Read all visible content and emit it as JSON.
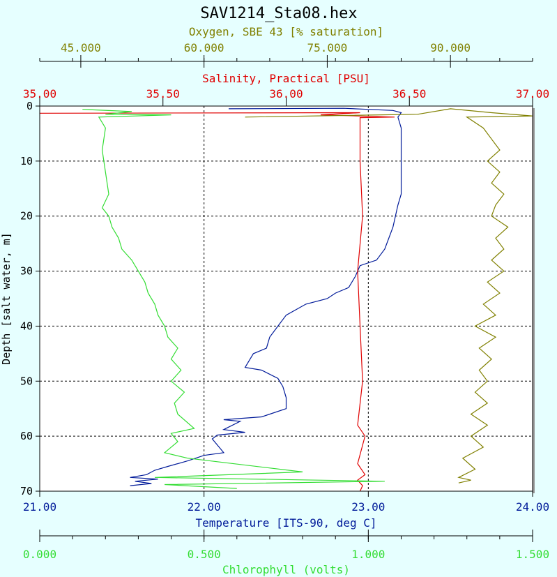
{
  "colors": {
    "background": "#e6ffff",
    "plot_background": "#ffffff",
    "axis": "#000000",
    "oxygen": "#808000",
    "salinity": "#e00000",
    "temperature": "#001a99",
    "chlorophyll": "#33dd33",
    "grid": "#000000",
    "title": "#000000"
  },
  "chart_data": {
    "type": "line",
    "title": "SAV1214_Sta08.hex",
    "grid": true,
    "y_axis": {
      "label": "Depth [salt water, m]",
      "range": [
        0,
        70
      ],
      "inverted": true,
      "ticks": [
        "0",
        "10",
        "20",
        "30",
        "40",
        "50",
        "60",
        "70"
      ]
    },
    "x_axes": [
      {
        "key": "oxygen",
        "position": "top",
        "label": "Oxygen, SBE 43 [% saturation]",
        "range": [
          40,
          100
        ],
        "major_ticks": [
          40,
          50,
          60,
          70,
          80,
          90,
          100
        ],
        "labeled_ticks": [
          {
            "value": 45,
            "text": "45.000"
          },
          {
            "value": 60,
            "text": "60.000"
          },
          {
            "value": 75,
            "text": "75.000"
          },
          {
            "value": 90,
            "text": "90.000"
          }
        ]
      },
      {
        "key": "salinity",
        "position": "top",
        "label": "Salinity, Practical [PSU]",
        "range": [
          35.0,
          37.0
        ],
        "labeled_ticks": [
          {
            "value": 35.0,
            "text": "35.00"
          },
          {
            "value": 35.5,
            "text": "35.50"
          },
          {
            "value": 36.0,
            "text": "36.00"
          },
          {
            "value": 36.5,
            "text": "36.50"
          },
          {
            "value": 37.0,
            "text": "37.00"
          }
        ]
      },
      {
        "key": "temperature",
        "position": "bottom",
        "label": "Temperature [ITS-90, deg C]",
        "range": [
          21.0,
          24.0
        ],
        "labeled_ticks": [
          {
            "value": 21.0,
            "text": "21.00"
          },
          {
            "value": 22.0,
            "text": "22.00"
          },
          {
            "value": 23.0,
            "text": "23.00"
          },
          {
            "value": 24.0,
            "text": "24.00"
          }
        ]
      },
      {
        "key": "chlorophyll",
        "position": "bottom",
        "label": "Chlorophyll (volts)",
        "range": [
          0.0,
          1.5
        ],
        "labeled_ticks": [
          {
            "value": 0.0,
            "text": "0.000"
          },
          {
            "value": 0.5,
            "text": "0.500"
          },
          {
            "value": 1.0,
            "text": "1.000"
          },
          {
            "value": 1.5,
            "text": "1.500"
          }
        ]
      }
    ],
    "series": [
      {
        "key": "temperature",
        "axis": "temperature",
        "points": [
          [
            22.15,
            0.5
          ],
          [
            22.85,
            0.4
          ],
          [
            23.15,
            0.8
          ],
          [
            23.2,
            1.2
          ],
          [
            23.18,
            2.0
          ],
          [
            23.2,
            4
          ],
          [
            23.2,
            10
          ],
          [
            23.2,
            16
          ],
          [
            23.18,
            18
          ],
          [
            23.15,
            22
          ],
          [
            23.1,
            26
          ],
          [
            23.05,
            28
          ],
          [
            22.95,
            29
          ],
          [
            22.92,
            31
          ],
          [
            22.88,
            33
          ],
          [
            22.8,
            34
          ],
          [
            22.75,
            35
          ],
          [
            22.62,
            36
          ],
          [
            22.5,
            38
          ],
          [
            22.45,
            40
          ],
          [
            22.4,
            42
          ],
          [
            22.38,
            44
          ],
          [
            22.3,
            45
          ],
          [
            22.25,
            47.5
          ],
          [
            22.35,
            48
          ],
          [
            22.45,
            49.5
          ],
          [
            22.48,
            51
          ],
          [
            22.5,
            53
          ],
          [
            22.5,
            55
          ],
          [
            22.35,
            56.5
          ],
          [
            22.12,
            57
          ],
          [
            22.22,
            57.3
          ],
          [
            22.12,
            58.8
          ],
          [
            22.25,
            59.3
          ],
          [
            22.08,
            59.8
          ],
          [
            22.05,
            60.5
          ],
          [
            22.12,
            63
          ],
          [
            22.0,
            63.5
          ],
          [
            21.9,
            64.5
          ],
          [
            21.78,
            65.5
          ],
          [
            21.7,
            66.2
          ],
          [
            21.65,
            67
          ],
          [
            21.55,
            67.5
          ],
          [
            21.72,
            67.8
          ],
          [
            21.58,
            68.2
          ],
          [
            21.68,
            68.6
          ],
          [
            21.55,
            69.0
          ]
        ]
      },
      {
        "key": "salinity",
        "axis": "salinity",
        "points": [
          [
            35.0,
            1.3
          ],
          [
            36.3,
            1.2
          ],
          [
            36.14,
            1.6
          ],
          [
            36.44,
            2.0
          ],
          [
            36.3,
            2.1
          ],
          [
            36.3,
            10
          ],
          [
            36.31,
            20
          ],
          [
            36.29,
            30
          ],
          [
            36.3,
            40
          ],
          [
            36.31,
            50
          ],
          [
            36.29,
            58
          ],
          [
            36.32,
            60
          ],
          [
            36.29,
            65
          ],
          [
            36.32,
            67
          ],
          [
            36.29,
            68
          ],
          [
            36.31,
            69
          ],
          [
            36.3,
            70
          ]
        ]
      },
      {
        "key": "oxygen",
        "axis": "oxygen",
        "points": [
          [
            65,
            2.0
          ],
          [
            86,
            1.5
          ],
          [
            90,
            0.5
          ],
          [
            95,
            1.2
          ],
          [
            100,
            1.8
          ],
          [
            92,
            2.0
          ],
          [
            94,
            4
          ],
          [
            95,
            6
          ],
          [
            96,
            8
          ],
          [
            94.5,
            10
          ],
          [
            96,
            12
          ],
          [
            95,
            14
          ],
          [
            96.5,
            16
          ],
          [
            95.5,
            18
          ],
          [
            95,
            20
          ],
          [
            97,
            22
          ],
          [
            95.5,
            24
          ],
          [
            96.5,
            26
          ],
          [
            95,
            28
          ],
          [
            96.5,
            30
          ],
          [
            94.5,
            32
          ],
          [
            96,
            34
          ],
          [
            94,
            36
          ],
          [
            95.5,
            38
          ],
          [
            93,
            40
          ],
          [
            95.5,
            42
          ],
          [
            93.5,
            44
          ],
          [
            95,
            46
          ],
          [
            93.5,
            48
          ],
          [
            94.5,
            50
          ],
          [
            93,
            52
          ],
          [
            94.5,
            54
          ],
          [
            92.5,
            56
          ],
          [
            94.5,
            58
          ],
          [
            92.5,
            60
          ],
          [
            94,
            62
          ],
          [
            91.5,
            64
          ],
          [
            93,
            66
          ],
          [
            91,
            67.5
          ],
          [
            92.5,
            68
          ],
          [
            91,
            68.5
          ]
        ]
      },
      {
        "key": "chlorophyll",
        "axis": "chlorophyll",
        "points": [
          [
            0.13,
            0.6
          ],
          [
            0.28,
            1.0
          ],
          [
            0.2,
            1.5
          ],
          [
            0.4,
            1.6
          ],
          [
            0.18,
            2.0
          ],
          [
            0.2,
            4
          ],
          [
            0.19,
            8
          ],
          [
            0.2,
            12
          ],
          [
            0.21,
            16
          ],
          [
            0.19,
            18.5
          ],
          [
            0.21,
            20
          ],
          [
            0.22,
            22
          ],
          [
            0.24,
            24
          ],
          [
            0.25,
            26
          ],
          [
            0.28,
            28
          ],
          [
            0.3,
            30
          ],
          [
            0.32,
            32
          ],
          [
            0.33,
            34
          ],
          [
            0.35,
            36
          ],
          [
            0.36,
            38
          ],
          [
            0.38,
            40
          ],
          [
            0.39,
            42
          ],
          [
            0.42,
            44
          ],
          [
            0.4,
            46
          ],
          [
            0.43,
            48
          ],
          [
            0.4,
            50
          ],
          [
            0.44,
            52
          ],
          [
            0.41,
            54
          ],
          [
            0.42,
            56
          ],
          [
            0.47,
            58.6
          ],
          [
            0.4,
            59.5
          ],
          [
            0.42,
            61
          ],
          [
            0.38,
            63
          ],
          [
            0.45,
            64
          ],
          [
            0.8,
            66.5
          ],
          [
            0.35,
            67.5
          ],
          [
            1.05,
            68.2
          ],
          [
            0.38,
            68.8
          ],
          [
            0.6,
            69.5
          ]
        ]
      }
    ]
  }
}
